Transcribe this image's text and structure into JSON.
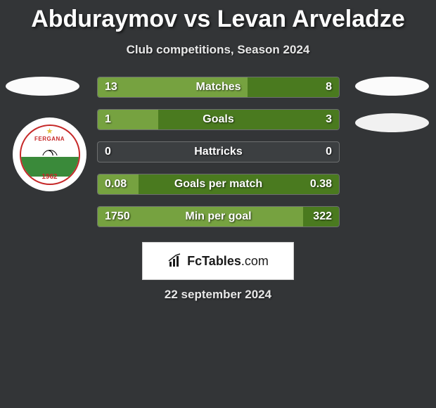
{
  "header": {
    "title": "Abduraymov vs Levan Arveladze",
    "subtitle": "Club competitions, Season 2024"
  },
  "colors": {
    "bar_left": "#76a240",
    "bar_right": "#4a7a1f",
    "bar_neutral": "#3c3f41",
    "avatar_bg": "#fbfbfb",
    "background": "#333537",
    "text": "#ffffff"
  },
  "club": {
    "name": "FERGANA",
    "year": "1962"
  },
  "stats": [
    {
      "label": "Matches",
      "left_value": "13",
      "right_value": "8",
      "left_pct": 62,
      "right_pct": 38
    },
    {
      "label": "Goals",
      "left_value": "1",
      "right_value": "3",
      "left_pct": 25,
      "right_pct": 75
    },
    {
      "label": "Hattricks",
      "left_value": "0",
      "right_value": "0",
      "left_pct": 0,
      "right_pct": 0
    },
    {
      "label": "Goals per match",
      "left_value": "0.08",
      "right_value": "0.38",
      "left_pct": 17,
      "right_pct": 83
    },
    {
      "label": "Min per goal",
      "left_value": "1750",
      "right_value": "322",
      "left_pct": 85,
      "right_pct": 15
    }
  ],
  "branding": {
    "name": "FcTables",
    "ext": ".com"
  },
  "date": "22 september 2024"
}
